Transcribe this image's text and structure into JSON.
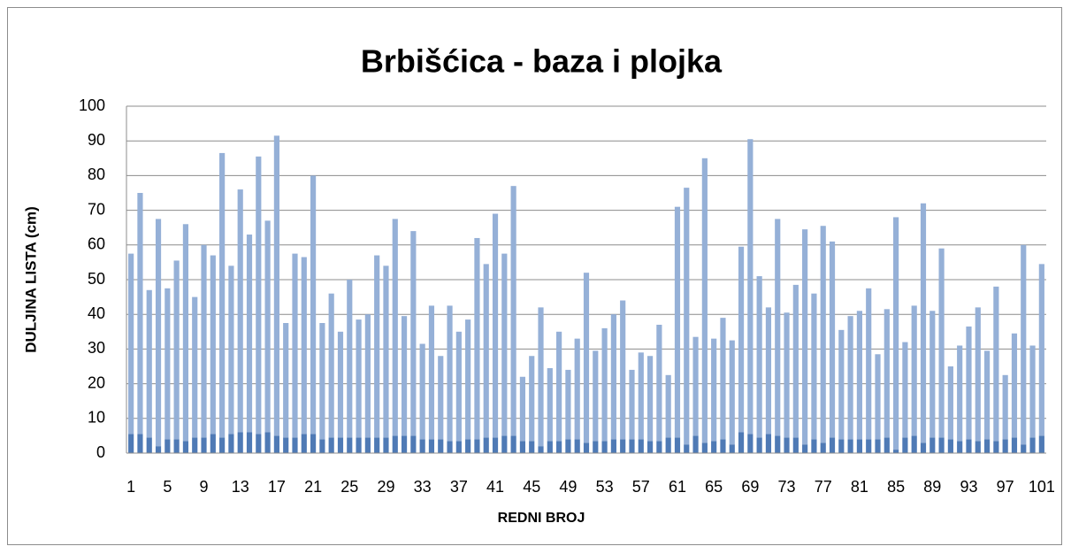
{
  "chart_data": {
    "type": "stacked_bar",
    "title": "Brbišćica - baza i plojka",
    "x_label": "REDNI BROJ",
    "y_label": "DULJINA LISTA (cm)",
    "categories": [
      "1",
      null,
      null,
      null,
      "5",
      null,
      null,
      null,
      "9",
      null,
      null,
      null,
      "13",
      null,
      null,
      null,
      "17",
      null,
      null,
      null,
      "21",
      null,
      null,
      null,
      "25",
      null,
      null,
      null,
      "29",
      null,
      null,
      null,
      "33",
      null,
      null,
      null,
      "37",
      null,
      null,
      null,
      "41",
      null,
      null,
      null,
      "45",
      null,
      null,
      null,
      "49",
      null,
      null,
      null,
      "53",
      null,
      null,
      null,
      "57",
      null,
      null,
      null,
      "61",
      null,
      null,
      null,
      "65",
      null,
      null,
      null,
      "69",
      null,
      null,
      null,
      "73",
      null,
      null,
      null,
      "77",
      null,
      null,
      null,
      "81",
      null,
      null,
      null,
      "85",
      null,
      null,
      null,
      "89",
      null,
      null,
      null,
      "93",
      null,
      null,
      null,
      "97",
      null,
      null,
      null,
      "101"
    ],
    "series": [
      {
        "color": "#4f7ab5",
        "values": [
          5.5,
          5.5,
          4.5,
          2,
          4,
          4,
          3.5,
          4.5,
          4.5,
          5.5,
          4.5,
          5.5,
          6,
          6,
          5.5,
          6,
          5,
          4.5,
          4.5,
          5.5,
          5.5,
          4,
          4.5,
          4.5,
          4.5,
          4.5,
          4.5,
          4.5,
          4.5,
          5,
          5,
          5,
          4,
          4,
          4,
          3.5,
          3.5,
          4,
          4,
          4.5,
          4.5,
          5,
          5,
          3.5,
          3.5,
          2,
          3.5,
          3.5,
          4,
          4,
          3,
          3.5,
          3.5,
          4,
          4,
          4,
          4,
          3.5,
          3.5,
          4.5,
          4.5,
          2.5,
          5,
          3,
          3.5,
          4,
          2.5,
          6,
          5.5,
          4.5,
          5.5,
          5,
          4.5,
          4.5,
          2.5,
          4,
          3,
          4.5,
          4,
          4,
          4,
          4,
          4,
          4.5,
          1,
          4.5,
          5,
          3,
          4.5,
          4.5,
          4,
          3.5,
          4,
          3.5,
          4,
          3.5,
          4,
          4.5,
          2.5,
          4.5,
          5
        ]
      },
      {
        "color": "#95b0d7",
        "values": [
          52,
          69.5,
          42.5,
          65.5,
          43.5,
          51.5,
          62.5,
          40.5,
          55.5,
          51.5,
          82,
          48.5,
          70,
          57,
          80,
          61,
          86.5,
          33,
          53,
          51,
          74.5,
          33.5,
          41.5,
          30.5,
          45.5,
          34,
          35.5,
          52.5,
          49.5,
          62.5,
          34.5,
          59,
          27.5,
          38.5,
          24,
          39,
          31.5,
          34.5,
          58,
          50,
          64.5,
          52.5,
          72,
          18.5,
          24.5,
          40,
          21,
          31.5,
          20,
          29,
          49,
          26,
          32.5,
          36,
          40,
          20,
          25,
          24.5,
          33.5,
          18,
          66.5,
          74,
          28.5,
          82,
          29.5,
          35,
          30,
          53.5,
          85,
          46.5,
          36.5,
          62.5,
          36,
          44,
          62,
          42,
          62.5,
          56.5,
          31.5,
          35.5,
          37,
          43.5,
          24.5,
          37,
          67,
          27.5,
          37.5,
          69,
          36.5,
          54.5,
          21,
          27.5,
          32.5,
          38.5,
          25.5,
          44.5,
          18.5,
          30,
          57.5,
          26.5,
          49.5
        ]
      }
    ],
    "ylim": [
      0,
      100
    ],
    "yticks": [
      0,
      10,
      20,
      30,
      40,
      50,
      60,
      70,
      80,
      90,
      100
    ],
    "grid": true
  }
}
